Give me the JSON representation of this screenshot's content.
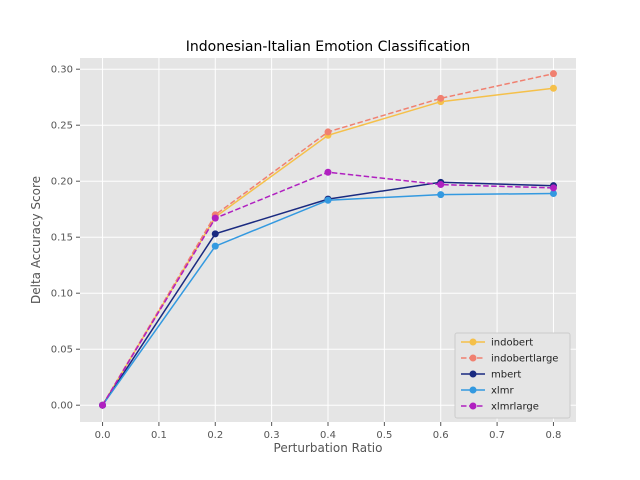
{
  "chart_data": {
    "type": "line",
    "title": "Indonesian-Italian Emotion Classification",
    "xlabel": "Perturbation Ratio",
    "ylabel": "Delta Accuracy Score",
    "xlim": [
      -0.04,
      0.84
    ],
    "ylim": [
      -0.015,
      0.31
    ],
    "xticks": [
      0.0,
      0.1,
      0.2,
      0.3,
      0.4,
      0.5,
      0.6,
      0.7,
      0.8
    ],
    "xtick_labels": [
      "0.0",
      "0.1",
      "0.2",
      "0.3",
      "0.4",
      "0.5",
      "0.6",
      "0.7",
      "0.8"
    ],
    "yticks": [
      0.0,
      0.05,
      0.1,
      0.15,
      0.2,
      0.25,
      0.3
    ],
    "ytick_labels": [
      "0.00",
      "0.05",
      "0.10",
      "0.15",
      "0.20",
      "0.25",
      "0.30"
    ],
    "grid": true,
    "legend_position": "lower-right",
    "x": [
      0.0,
      0.2,
      0.4,
      0.6,
      0.8
    ],
    "series": [
      {
        "name": "indobert",
        "color": "#f5c04a",
        "dash": "solid",
        "values": [
          0.0,
          0.168,
          0.241,
          0.271,
          0.283
        ]
      },
      {
        "name": "indobertlarge",
        "color": "#f08070",
        "dash": "dashed",
        "values": [
          0.0,
          0.17,
          0.244,
          0.274,
          0.296
        ]
      },
      {
        "name": "mbert",
        "color": "#1a2a80",
        "dash": "solid",
        "values": [
          0.0,
          0.153,
          0.184,
          0.199,
          0.196
        ]
      },
      {
        "name": "xlmr",
        "color": "#3399e0",
        "dash": "solid",
        "values": [
          0.0,
          0.142,
          0.183,
          0.188,
          0.189
        ]
      },
      {
        "name": "xlmrlarge",
        "color": "#b020c0",
        "dash": "dashed",
        "values": [
          0.0,
          0.167,
          0.208,
          0.197,
          0.194
        ]
      }
    ]
  }
}
